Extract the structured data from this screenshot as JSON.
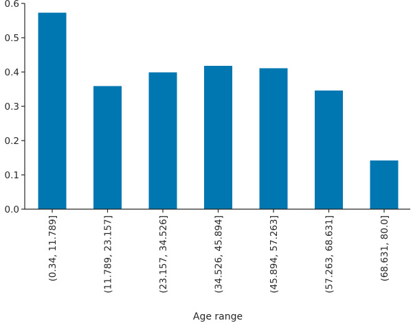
{
  "chart_data": {
    "type": "bar",
    "categories": [
      "(0.34, 11.789]",
      "(11.789, 23.157]",
      "(23.157, 34.526]",
      "(34.526, 45.894]",
      "(45.894, 57.263]",
      "(57.263, 68.631]",
      "(68.631, 80.0]"
    ],
    "values": [
      0.573,
      0.359,
      0.399,
      0.418,
      0.411,
      0.346,
      0.142
    ],
    "title": "",
    "xlabel": "Age range",
    "ylabel": "",
    "ylim": [
      0,
      0.6
    ],
    "yticks": [
      0.0,
      0.1,
      0.2,
      0.3,
      0.4,
      0.5,
      0.6
    ],
    "ytick_labels": [
      "0.0",
      "0.1",
      "0.2",
      "0.3",
      "0.4",
      "0.5",
      "0.6"
    ],
    "bar_color": "#0077b0",
    "grid": false,
    "legend": "none"
  }
}
